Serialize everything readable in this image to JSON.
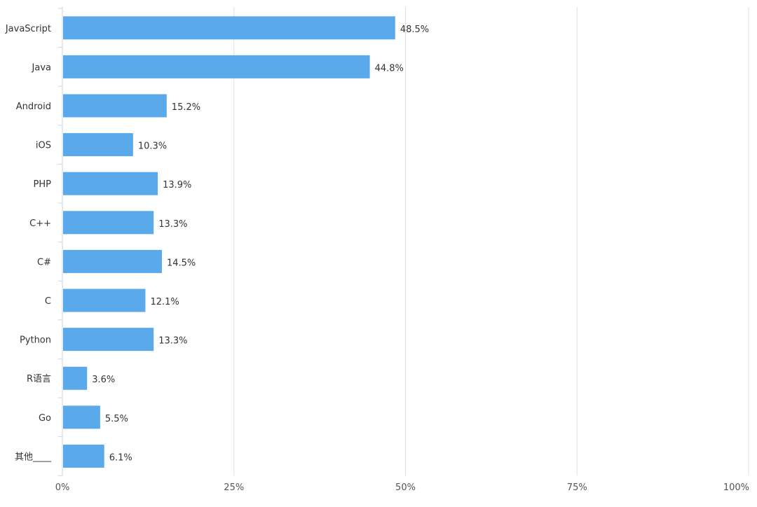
{
  "chart_data": {
    "type": "bar",
    "orientation": "horizontal",
    "categories": [
      "JavaScript",
      "Java",
      "Android",
      "iOS",
      "PHP",
      "C++",
      "C#",
      "C",
      "Python",
      "R语言",
      "Go",
      "其他____"
    ],
    "values": [
      48.5,
      44.8,
      15.2,
      10.3,
      13.9,
      13.3,
      14.5,
      12.1,
      13.3,
      3.6,
      5.5,
      6.1
    ],
    "data_labels": [
      "48.5%",
      "44.8%",
      "15.2%",
      "10.3%",
      "13.9%",
      "13.3%",
      "14.5%",
      "12.1%",
      "13.3%",
      "3.6%",
      "5.5%",
      "6.1%"
    ],
    "x_ticks": [
      0,
      25,
      50,
      75,
      100
    ],
    "x_tick_labels": [
      "0%",
      "25%",
      "50%",
      "75%",
      "100%"
    ],
    "xlim": [
      0,
      100
    ],
    "grid": "vertical",
    "legend": "none",
    "bar_color": "#5aaaeb",
    "grid_color": "#e0e0e0",
    "axis_color": "#c9d6df",
    "label_color": "#333333"
  }
}
